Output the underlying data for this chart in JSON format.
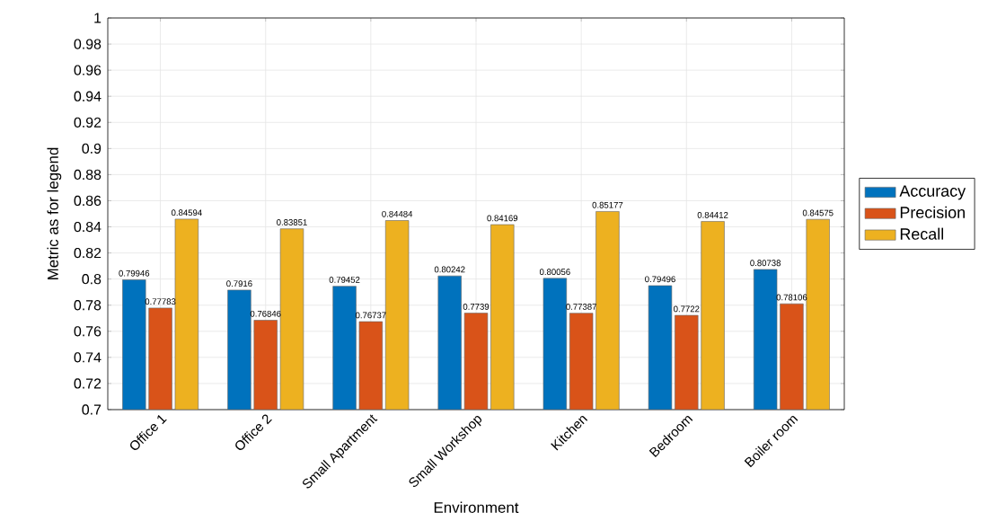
{
  "chart_data": {
    "type": "bar",
    "xlabel": "Environment",
    "ylabel": "Metric as for legend",
    "categories": [
      "Office 1",
      "Office 2",
      "Small Apartment",
      "Small Workshop",
      "Kitchen",
      "Bedroom",
      "Boiler room"
    ],
    "series": [
      {
        "name": "Accuracy",
        "color": "#0072bd",
        "values": [
          0.79946,
          0.7916,
          0.79452,
          0.80242,
          0.80056,
          0.79496,
          0.80738
        ]
      },
      {
        "name": "Precision",
        "color": "#d95319",
        "values": [
          0.77783,
          0.76846,
          0.76737,
          0.7739,
          0.77387,
          0.7722,
          0.78106
        ]
      },
      {
        "name": "Recall",
        "color": "#edb120",
        "values": [
          0.84594,
          0.83851,
          0.84484,
          0.84169,
          0.85177,
          0.84412,
          0.84575
        ]
      }
    ],
    "ylim": [
      0.7,
      1
    ],
    "yticks": [
      0.7,
      0.72,
      0.74,
      0.76,
      0.78,
      0.8,
      0.82,
      0.84,
      0.86,
      0.88,
      0.9,
      0.92,
      0.94,
      0.96,
      0.98,
      1
    ],
    "grid": true,
    "legend": "right",
    "data_labels": true
  }
}
